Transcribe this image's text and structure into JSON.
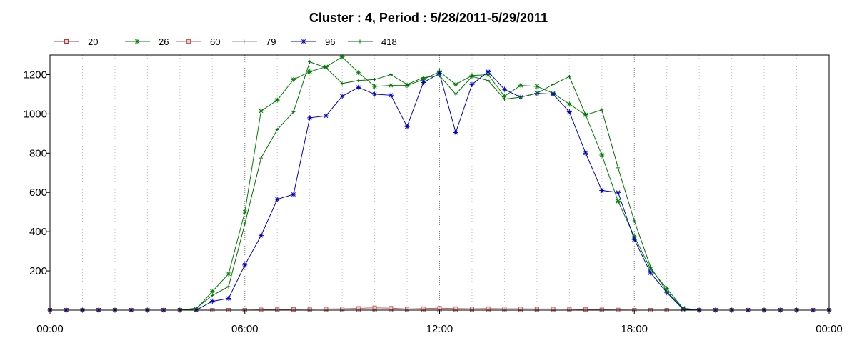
{
  "chart_data": {
    "type": "line",
    "title": "Cluster : 4, Period : 5/28/2011-5/29/2011",
    "xlabel": "",
    "ylabel": "",
    "x_range_hours": [
      0,
      24
    ],
    "x_tick_labels": [
      "00:00",
      "06:00",
      "12:00",
      "18:00",
      "00:00"
    ],
    "y_ticks": [
      200,
      400,
      600,
      800,
      1000,
      1200
    ],
    "ylim": [
      0,
      1300
    ],
    "grid": "vertical dotted lines",
    "legend_position": "top-left",
    "x": [
      0,
      0.5,
      1,
      1.5,
      2,
      2.5,
      3,
      3.5,
      4,
      4.5,
      5,
      5.5,
      6,
      6.5,
      7,
      7.5,
      8,
      8.5,
      9,
      9.5,
      10,
      10.5,
      11,
      11.5,
      12,
      12.5,
      13,
      13.5,
      14,
      14.5,
      15,
      15.5,
      16,
      16.5,
      17,
      17.5,
      18,
      18.5,
      19,
      19.5,
      20,
      20.5,
      21,
      21.5,
      22,
      22.5,
      23,
      23.5,
      24
    ],
    "series": [
      {
        "name": "20",
        "color": "#a04040",
        "marker": "square",
        "values": [
          0,
          0,
          0,
          0,
          0,
          0,
          0,
          0,
          0,
          0,
          0,
          0,
          0,
          0,
          0,
          0,
          0,
          0,
          0,
          0,
          0,
          0,
          0,
          0,
          0,
          0,
          0,
          0,
          0,
          0,
          0,
          0,
          0,
          0,
          0,
          0,
          0,
          0,
          0,
          0,
          0,
          0,
          0,
          0,
          0,
          0,
          0,
          0,
          0
        ]
      },
      {
        "name": "26",
        "color": "#008000",
        "marker": "asterisk",
        "values": [
          0,
          0,
          0,
          0,
          0,
          0,
          0,
          0,
          0,
          5,
          95,
          185,
          500,
          1015,
          1070,
          1175,
          1215,
          1240,
          1290,
          1210,
          1140,
          1145,
          1145,
          1175,
          1215,
          1150,
          1195,
          1200,
          1090,
          1145,
          1140,
          1105,
          1050,
          995,
          790,
          555,
          375,
          210,
          110,
          10,
          0,
          0,
          0,
          0,
          0,
          0,
          0,
          0,
          0
        ]
      },
      {
        "name": "60",
        "color": "#c06060",
        "marker": "square",
        "values": [
          0,
          0,
          0,
          0,
          0,
          0,
          0,
          0,
          0,
          0,
          0,
          0,
          0,
          2,
          3,
          4,
          5,
          6,
          7,
          9,
          12,
          10,
          6,
          8,
          10,
          8,
          7,
          8,
          7,
          7,
          6,
          6,
          5,
          3,
          2,
          1,
          0,
          0,
          0,
          0,
          0,
          0,
          0,
          0,
          0,
          0,
          0,
          0,
          0
        ]
      },
      {
        "name": "79",
        "color": "#909090",
        "marker": "plus",
        "values": [
          0,
          0,
          0,
          0,
          0,
          0,
          0,
          0,
          0,
          0,
          0,
          0,
          0,
          0,
          0,
          0,
          0,
          0,
          0,
          0,
          0,
          0,
          0,
          0,
          0,
          0,
          0,
          0,
          0,
          0,
          0,
          0,
          0,
          0,
          0,
          0,
          0,
          0,
          0,
          0,
          0,
          0,
          0,
          0,
          0,
          0,
          0,
          0,
          0
        ]
      },
      {
        "name": "96",
        "color": "#0000cc",
        "marker": "asterisk",
        "values": [
          0,
          0,
          0,
          0,
          0,
          0,
          0,
          0,
          0,
          0,
          45,
          60,
          230,
          380,
          565,
          590,
          980,
          990,
          1090,
          1135,
          1100,
          1095,
          935,
          1160,
          1205,
          905,
          1150,
          1215,
          1125,
          1085,
          1105,
          1100,
          1010,
          800,
          610,
          600,
          360,
          190,
          90,
          5,
          0,
          0,
          0,
          0,
          0,
          0,
          0,
          0,
          0
        ]
      },
      {
        "name": "418",
        "color": "#007000",
        "marker": "plus",
        "values": [
          0,
          0,
          0,
          0,
          0,
          0,
          0,
          0,
          0,
          10,
          75,
          120,
          440,
          775,
          920,
          1010,
          1265,
          1235,
          1155,
          1170,
          1175,
          1200,
          1150,
          1185,
          1195,
          1100,
          1190,
          1170,
          1075,
          1085,
          1105,
          1150,
          1190,
          995,
          1020,
          725,
          455,
          220,
          95,
          10,
          0,
          0,
          0,
          0,
          0,
          0,
          0,
          0,
          0
        ]
      }
    ]
  }
}
